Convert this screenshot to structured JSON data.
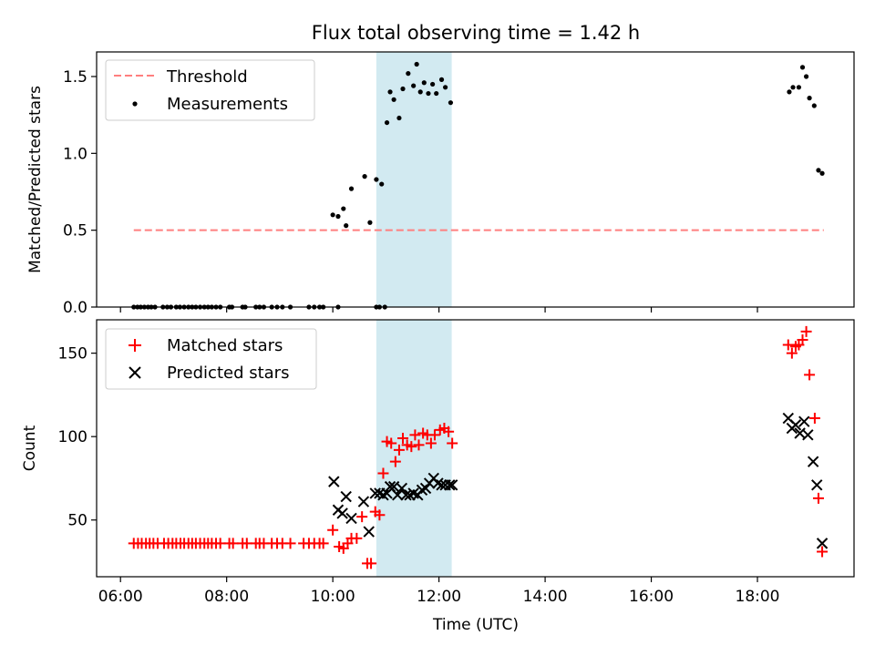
{
  "figure": {
    "title": "Flux total observing time = 1.42 h",
    "xlabel": "Time (UTC)",
    "x_ticks": [
      {
        "value": 6,
        "label": "06:00"
      },
      {
        "value": 8,
        "label": "08:00"
      },
      {
        "value": 10,
        "label": "10:00"
      },
      {
        "value": 12,
        "label": "12:00"
      },
      {
        "value": 14,
        "label": "14:00"
      },
      {
        "value": 16,
        "label": "16:00"
      },
      {
        "value": 18,
        "label": "18:00"
      }
    ],
    "x_range": [
      5.55,
      19.82
    ],
    "highlight_span": {
      "start": 10.82,
      "end": 12.24,
      "color": "#add8e6"
    }
  },
  "chart_data": [
    {
      "type": "scatter",
      "ylabel": "Matched/Predicted stars",
      "ylim": [
        0,
        1.66
      ],
      "y_ticks": [
        {
          "value": 0,
          "label": "0.0"
        },
        {
          "value": 0.5,
          "label": "0.5"
        },
        {
          "value": 1.0,
          "label": "1.0"
        },
        {
          "value": 1.5,
          "label": "1.5"
        }
      ],
      "legend": {
        "position": "top-left",
        "entries": [
          "Threshold",
          "Measurements"
        ]
      },
      "threshold": {
        "name": "Threshold",
        "y": 0.5,
        "x_range": [
          6.25,
          19.25
        ],
        "color": "#ff7f7f",
        "style": "dashed"
      },
      "series": [
        {
          "name": "Measurements",
          "marker": "dot",
          "color": "#000000",
          "x": [
            6.25,
            6.32,
            6.38,
            6.45,
            6.52,
            6.58,
            6.65,
            6.8,
            6.88,
            6.95,
            7.05,
            7.12,
            7.2,
            7.28,
            7.35,
            7.42,
            7.5,
            7.58,
            7.65,
            7.72,
            7.8,
            7.88,
            8.05,
            8.1,
            8.3,
            8.35,
            8.55,
            8.62,
            8.7,
            8.85,
            8.95,
            9.05,
            9.2,
            9.55,
            9.65,
            9.75,
            9.82,
            10.1,
            10.82,
            10.88,
            10.98,
            10.0,
            10.1,
            10.2,
            10.25,
            10.35,
            10.6,
            10.7,
            10.82,
            10.92,
            11.02,
            11.08,
            11.15,
            11.25,
            11.32,
            11.42,
            11.52,
            11.58,
            11.65,
            11.72,
            11.8,
            11.88,
            11.95,
            12.05,
            12.12,
            12.22,
            18.6,
            18.67,
            18.78,
            18.85,
            18.92,
            18.98,
            19.07,
            19.15,
            19.22
          ],
          "y": [
            0,
            0,
            0,
            0,
            0,
            0,
            0,
            0,
            0,
            0,
            0,
            0,
            0,
            0,
            0,
            0,
            0,
            0,
            0,
            0,
            0,
            0,
            0,
            0,
            0,
            0,
            0,
            0,
            0,
            0,
            0,
            0,
            0,
            0,
            0,
            0,
            0,
            0,
            0,
            0,
            0,
            0.6,
            0.59,
            0.64,
            0.53,
            0.77,
            0.85,
            0.55,
            0.83,
            0.8,
            1.2,
            1.4,
            1.35,
            1.23,
            1.42,
            1.52,
            1.44,
            1.58,
            1.4,
            1.46,
            1.39,
            1.45,
            1.39,
            1.48,
            1.43,
            1.33,
            1.4,
            1.43,
            1.43,
            1.56,
            1.5,
            1.36,
            1.31,
            0.89,
            0.87
          ]
        }
      ]
    },
    {
      "type": "scatter",
      "ylabel": "Count",
      "ylim": [
        16,
        170
      ],
      "y_ticks": [
        {
          "value": 50,
          "label": "50"
        },
        {
          "value": 100,
          "label": "100"
        },
        {
          "value": 150,
          "label": "150"
        }
      ],
      "legend": {
        "position": "top-left",
        "entries": [
          "Matched stars",
          "Predicted stars"
        ]
      },
      "series": [
        {
          "name": "Matched stars",
          "marker": "plus",
          "color": "#ff0000",
          "x": [
            6.25,
            6.33,
            6.4,
            6.48,
            6.55,
            6.62,
            6.7,
            6.82,
            6.9,
            6.98,
            7.05,
            7.13,
            7.2,
            7.28,
            7.35,
            7.42,
            7.5,
            7.58,
            7.65,
            7.72,
            7.8,
            7.88,
            8.05,
            8.12,
            8.3,
            8.38,
            8.55,
            8.62,
            8.7,
            8.85,
            8.95,
            9.05,
            9.2,
            9.45,
            9.55,
            9.65,
            9.75,
            9.82,
            10.0,
            10.12,
            10.2,
            10.28,
            10.35,
            10.45,
            10.55,
            10.65,
            10.72,
            10.8,
            10.88,
            10.95,
            11.02,
            11.1,
            11.18,
            11.25,
            11.32,
            11.4,
            11.48,
            11.55,
            11.62,
            11.7,
            11.78,
            11.85,
            11.92,
            12.02,
            12.1,
            12.18,
            12.25,
            18.58,
            18.65,
            18.72,
            18.78,
            18.85,
            18.92,
            18.98,
            19.08,
            19.15,
            19.22
          ],
          "y": [
            36,
            36,
            36,
            36,
            36,
            36,
            36,
            36,
            36,
            36,
            36,
            36,
            36,
            36,
            36,
            36,
            36,
            36,
            36,
            36,
            36,
            36,
            36,
            36,
            36,
            36,
            36,
            36,
            36,
            36,
            36,
            36,
            36,
            36,
            36,
            36,
            36,
            36,
            44,
            34,
            33,
            36,
            39,
            39,
            52,
            24,
            24,
            55,
            53,
            78,
            97,
            96,
            85,
            92,
            99,
            95,
            94,
            101,
            95,
            102,
            101,
            96,
            101,
            104,
            105,
            103,
            96,
            155,
            150,
            154,
            155,
            158,
            163,
            137,
            111,
            63,
            31
          ]
        },
        {
          "name": "Predicted stars",
          "marker": "x",
          "color": "#000000",
          "x": [
            10.02,
            10.1,
            10.18,
            10.25,
            10.35,
            10.58,
            10.68,
            10.8,
            10.88,
            10.95,
            11.02,
            11.08,
            11.15,
            11.22,
            11.3,
            11.38,
            11.45,
            11.52,
            11.6,
            11.68,
            11.75,
            11.82,
            11.9,
            11.98,
            12.05,
            12.12,
            12.2,
            12.25,
            18.58,
            18.65,
            18.72,
            18.8,
            18.88,
            18.95,
            19.05,
            19.12,
            19.22
          ],
          "y": [
            73,
            56,
            54,
            64,
            51,
            61,
            43,
            66,
            66,
            65,
            66,
            70,
            70,
            65,
            69,
            65,
            65,
            66,
            65,
            68,
            69,
            72,
            75,
            72,
            71,
            71,
            71,
            71,
            111,
            105,
            107,
            102,
            109,
            101,
            85,
            71,
            36
          ]
        }
      ]
    }
  ]
}
